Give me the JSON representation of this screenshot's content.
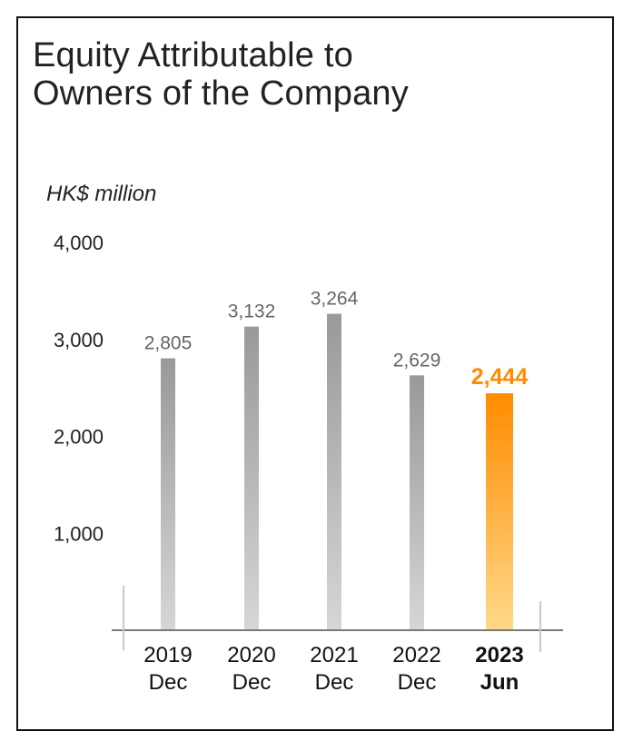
{
  "chart_data": {
    "type": "bar",
    "title": "Equity Attributable to Owners of the Company",
    "title_lines": [
      "Equity Attributable to",
      "Owners of the Company"
    ],
    "ylabel": "HK$ million",
    "xlabel": "",
    "ylim": [
      0,
      4000
    ],
    "yticks": [
      1000,
      2000,
      3000,
      4000
    ],
    "ytick_labels": [
      "1,000",
      "2,000",
      "3,000",
      "4,000"
    ],
    "grid": false,
    "categories": [
      {
        "line1": "2019",
        "line2": "Dec"
      },
      {
        "line1": "2020",
        "line2": "Dec"
      },
      {
        "line1": "2021",
        "line2": "Dec"
      },
      {
        "line1": "2022",
        "line2": "Dec"
      },
      {
        "line1": "2023",
        "line2": "Jun"
      }
    ],
    "values": [
      2805,
      3132,
      3264,
      2629,
      2444
    ],
    "value_labels": [
      "2,805",
      "3,132",
      "3,264",
      "2,629",
      "2,444"
    ],
    "highlight_index": 4,
    "colors": {
      "bar_top": "#999999",
      "bar_bottom": "#d6d6d6",
      "highlight_top": "#ff8c00",
      "highlight_bottom": "#ffd98a",
      "value_label": "#666666",
      "highlight_label": "#ff8c00",
      "axis": "#7a7a7a",
      "tick_marks": "#c8c8c8",
      "text": "#222222"
    }
  }
}
